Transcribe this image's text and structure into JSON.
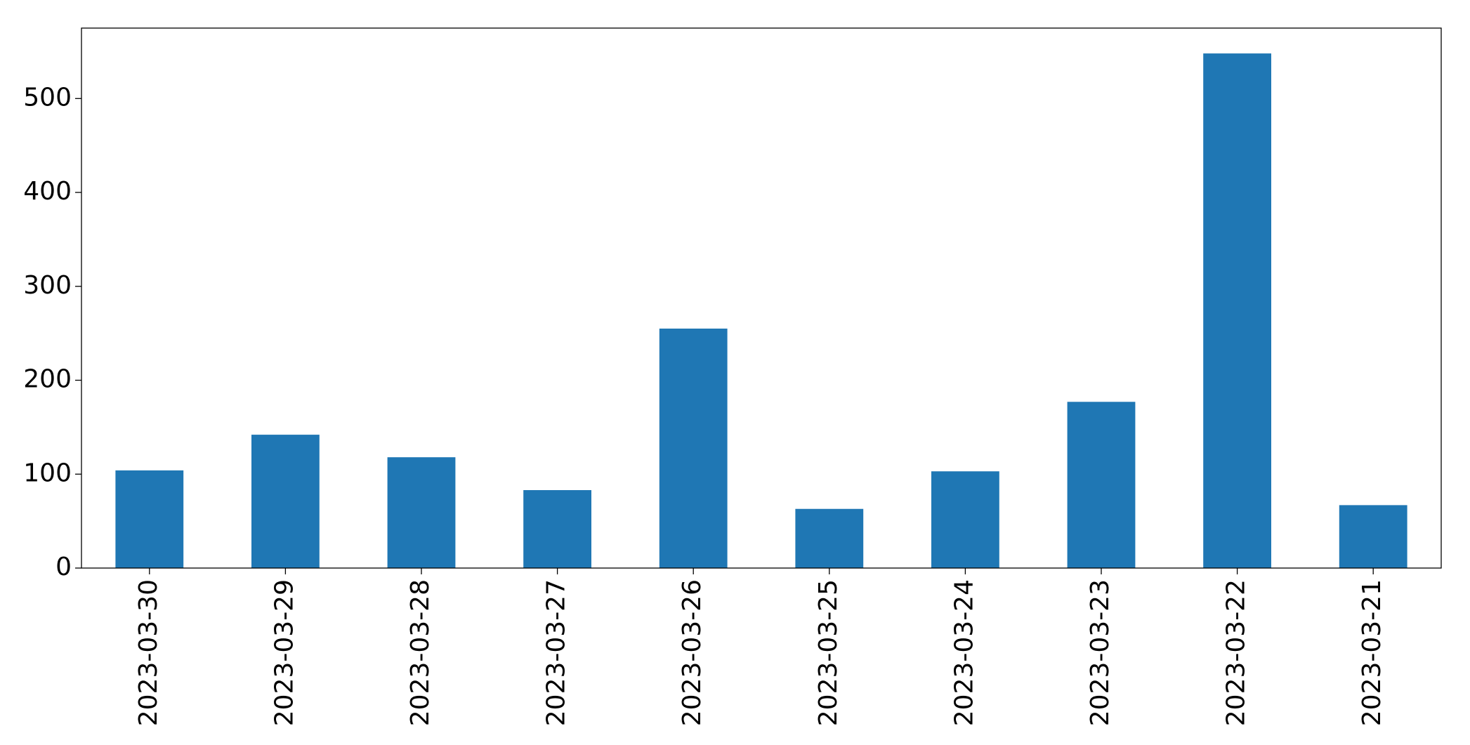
{
  "chart_data": {
    "type": "bar",
    "categories": [
      "2023-03-30",
      "2023-03-29",
      "2023-03-28",
      "2023-03-27",
      "2023-03-26",
      "2023-03-25",
      "2023-03-24",
      "2023-03-23",
      "2023-03-22",
      "2023-03-21"
    ],
    "values": [
      104,
      142,
      118,
      83,
      255,
      63,
      103,
      177,
      548,
      67
    ],
    "color": "#1f77b4",
    "ylim": [
      0,
      575
    ],
    "yticks": [
      0,
      100,
      200,
      300,
      400,
      500
    ],
    "grid": false
  }
}
